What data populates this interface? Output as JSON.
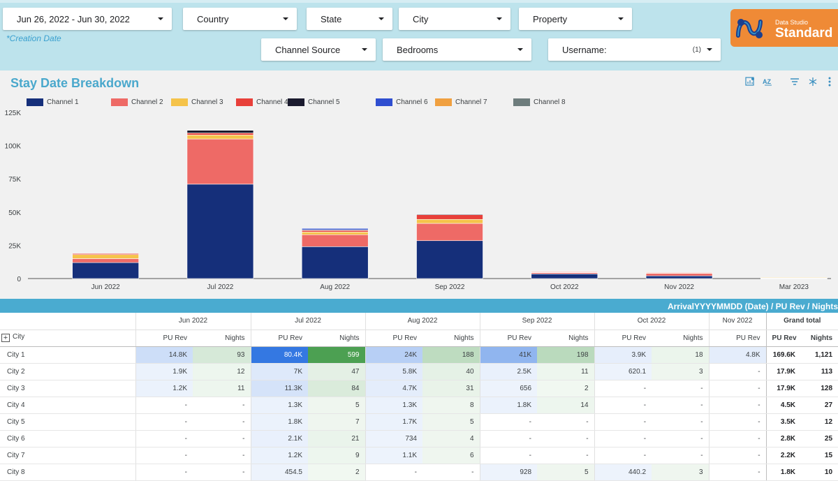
{
  "filters": {
    "date_range": "Jun 26, 2022 - Jun 30, 2022",
    "country": "Country",
    "state": "State",
    "city": "City",
    "property": "Property",
    "channel_source": "Channel Source",
    "bedrooms": "Bedrooms",
    "username": "Username:",
    "username_count": "(1)",
    "creation_date_note": "*Creation Date"
  },
  "logo": {
    "small": "Data Studio",
    "big": "Standard",
    "icon": "rm-logo-icon"
  },
  "chart_section": {
    "title": "Stay Date Breakdown",
    "toolbar_icons": [
      "explore-chart-icon",
      "sort-az-icon",
      "filter-icon",
      "drill-icon",
      "more-vert-icon"
    ]
  },
  "colors": {
    "header_bg": "#bde3ec",
    "accent": "#4aabd0",
    "logo_bg": "#ef8a36"
  },
  "chart_data": {
    "type": "bar",
    "stacked": true,
    "categories": [
      "Jun 2022",
      "Jul 2022",
      "Aug 2022",
      "Sep 2022",
      "Oct 2022",
      "Nov 2022",
      "Mar 2023"
    ],
    "series": [
      {
        "name": "Channel 1",
        "color": "#152f7a",
        "values": [
          12000,
          71000,
          24000,
          28500,
          3500,
          2000,
          300
        ]
      },
      {
        "name": "Channel 2",
        "color": "#ee6a66",
        "values": [
          3000,
          34000,
          9000,
          13000,
          1000,
          2000,
          200
        ]
      },
      {
        "name": "Channel 3",
        "color": "#f5c34a",
        "values": [
          3000,
          3000,
          2000,
          3000,
          300,
          300,
          300
        ]
      },
      {
        "name": "Channel 4",
        "color": "#e8403a",
        "values": [
          800,
          1500,
          1200,
          3500,
          200,
          300,
          0
        ]
      },
      {
        "name": "Channel 5",
        "color": "#1a1a2e",
        "values": [
          0,
          2000,
          500,
          500,
          0,
          0,
          0
        ]
      },
      {
        "name": "Channel 6",
        "color": "#2f4ed0",
        "values": [
          0,
          0,
          1000,
          0,
          0,
          0,
          0
        ]
      },
      {
        "name": "Channel 7",
        "color": "#f0a040",
        "values": [
          0,
          0,
          0,
          0,
          0,
          0,
          0
        ]
      },
      {
        "name": "Channel 8",
        "color": "#6e7d7d",
        "values": [
          0,
          0,
          0,
          0,
          0,
          0,
          0
        ]
      }
    ],
    "y_ticks": [
      "0",
      "25K",
      "50K",
      "75K",
      "100K",
      "125K"
    ],
    "ylim": [
      0,
      125000
    ],
    "legend_position": "top",
    "grid": false
  },
  "table": {
    "bar_title": "ArrivalYYYYMMDD (Date) / PU Rev / Nights",
    "row_header": "City",
    "months": [
      "Jun 2022",
      "Jul 2022",
      "Aug 2022",
      "Sep 2022",
      "Oct 2022",
      "Nov 2022"
    ],
    "grand_total": "Grand total",
    "metric_rev": "PU Rev",
    "metric_nights": "Nights",
    "rows": [
      {
        "city": "City 1",
        "cells": [
          "14.8K",
          "93",
          "80.4K",
          "599",
          "24K",
          "188",
          "41K",
          "198",
          "3.9K",
          "18",
          "4.8K"
        ],
        "gt_rev": "169.6K",
        "gt_nights": "1,121"
      },
      {
        "city": "City 2",
        "cells": [
          "1.9K",
          "12",
          "7K",
          "47",
          "5.8K",
          "40",
          "2.5K",
          "11",
          "620.1",
          "3",
          "-"
        ],
        "gt_rev": "17.9K",
        "gt_nights": "113"
      },
      {
        "city": "City 3",
        "cells": [
          "1.2K",
          "11",
          "11.3K",
          "84",
          "4.7K",
          "31",
          "656",
          "2",
          "-",
          "-",
          "-"
        ],
        "gt_rev": "17.9K",
        "gt_nights": "128"
      },
      {
        "city": "City 4",
        "cells": [
          "-",
          "-",
          "1.3K",
          "5",
          "1.3K",
          "8",
          "1.8K",
          "14",
          "-",
          "-",
          "-"
        ],
        "gt_rev": "4.5K",
        "gt_nights": "27"
      },
      {
        "city": "City 5",
        "cells": [
          "-",
          "-",
          "1.8K",
          "7",
          "1.7K",
          "5",
          "-",
          "-",
          "-",
          "-",
          "-"
        ],
        "gt_rev": "3.5K",
        "gt_nights": "12"
      },
      {
        "city": "City 6",
        "cells": [
          "-",
          "-",
          "2.1K",
          "21",
          "734",
          "4",
          "-",
          "-",
          "-",
          "-",
          "-"
        ],
        "gt_rev": "2.8K",
        "gt_nights": "25"
      },
      {
        "city": "City 7",
        "cells": [
          "-",
          "-",
          "1.2K",
          "9",
          "1.1K",
          "6",
          "-",
          "-",
          "-",
          "-",
          "-"
        ],
        "gt_rev": "2.2K",
        "gt_nights": "15"
      },
      {
        "city": "City 8",
        "cells": [
          "-",
          "-",
          "454.5",
          "2",
          "-",
          "-",
          "928",
          "5",
          "440.2",
          "3",
          "-"
        ],
        "gt_rev": "1.8K",
        "gt_nights": "10"
      }
    ],
    "heat_rev": [
      [
        0.18,
        1.0,
        0.3,
        0.51,
        0.05,
        0.06
      ],
      [
        0.02,
        0.09,
        0.07,
        0.03,
        0.01,
        0
      ],
      [
        0.02,
        0.14,
        0.06,
        0.01,
        0,
        0
      ],
      [
        0,
        0.02,
        0.02,
        0.02,
        0,
        0
      ],
      [
        0,
        0.02,
        0.02,
        0,
        0,
        0
      ],
      [
        0,
        0.03,
        0.01,
        0,
        0,
        0
      ],
      [
        0,
        0.02,
        0.01,
        0,
        0,
        0
      ],
      [
        0,
        0.01,
        0,
        0.01,
        0.01,
        0
      ]
    ],
    "heat_nights": [
      [
        0.16,
        1.0,
        0.31,
        0.33,
        0.03
      ],
      [
        0.02,
        0.08,
        0.07,
        0.02,
        0.01
      ],
      [
        0.02,
        0.14,
        0.05,
        0.0,
        0
      ],
      [
        0,
        0.01,
        0.01,
        0.02,
        0
      ],
      [
        0,
        0.01,
        0.01,
        0,
        0
      ],
      [
        0,
        0.04,
        0.01,
        0,
        0
      ],
      [
        0,
        0.02,
        0.01,
        0,
        0
      ],
      [
        0,
        0.0,
        0,
        0.01,
        0.01
      ]
    ]
  }
}
